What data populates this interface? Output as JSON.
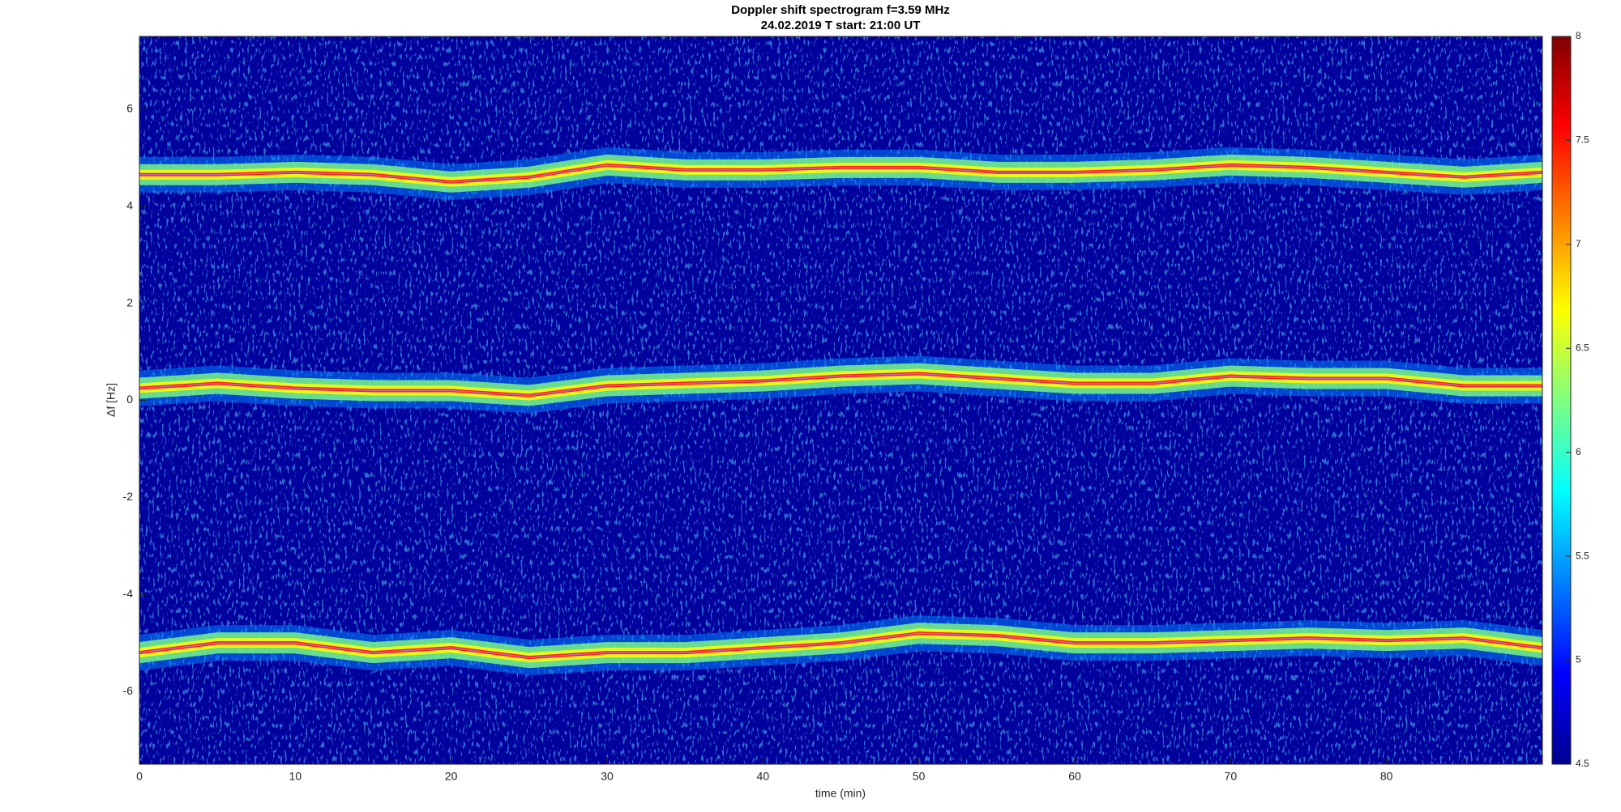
{
  "chart_data": {
    "type": "spectrogram",
    "title": "Doppler shift spectrogram f=3.59 MHz",
    "subtitle": "24.02.2019    T start: 21:00 UT",
    "xlabel": "time (min)",
    "ylabel": "Δf [Hz]",
    "x": [
      0,
      5,
      10,
      15,
      20,
      25,
      30,
      35,
      40,
      45,
      50,
      55,
      60,
      65,
      70,
      75,
      80,
      85,
      90
    ],
    "series": [
      {
        "color": "#d65ad6",
        "values": [
          4.65,
          4.65,
          4.7,
          4.65,
          4.5,
          4.6,
          4.85,
          4.75,
          4.75,
          4.8,
          4.8,
          4.7,
          4.7,
          4.75,
          4.85,
          4.8,
          4.7,
          4.6,
          4.7
        ]
      },
      {
        "color": "#d65ad6",
        "values": [
          0.25,
          0.35,
          0.25,
          0.2,
          0.2,
          0.1,
          0.3,
          0.35,
          0.4,
          0.5,
          0.55,
          0.45,
          0.35,
          0.35,
          0.5,
          0.45,
          0.45,
          0.3,
          0.3
        ]
      },
      {
        "color": "#d65ad6",
        "values": [
          -5.2,
          -5.0,
          -5.0,
          -5.2,
          -5.1,
          -5.3,
          -5.2,
          -5.2,
          -5.1,
          -5.0,
          -4.8,
          -4.85,
          -5.0,
          -5.0,
          -4.95,
          -4.9,
          -4.95,
          -4.9,
          -5.1
        ]
      }
    ],
    "xlim": [
      0,
      90
    ],
    "ylim": [
      -7.5,
      7.5
    ],
    "xticks": [
      0,
      10,
      20,
      30,
      40,
      50,
      60,
      70,
      80
    ],
    "yticks": [
      -6,
      -4,
      -2,
      0,
      2,
      4,
      6
    ],
    "clim": [
      4.5,
      8
    ],
    "cticks": [
      4.5,
      5,
      5.5,
      6,
      6.5,
      7,
      7.5,
      8
    ],
    "colormap": [
      "#00008f",
      "#0000ff",
      "#0080ff",
      "#00ffff",
      "#80ff80",
      "#ffff00",
      "#ff8000",
      "#ff0000",
      "#800000"
    ],
    "background_color": "#00009c"
  }
}
